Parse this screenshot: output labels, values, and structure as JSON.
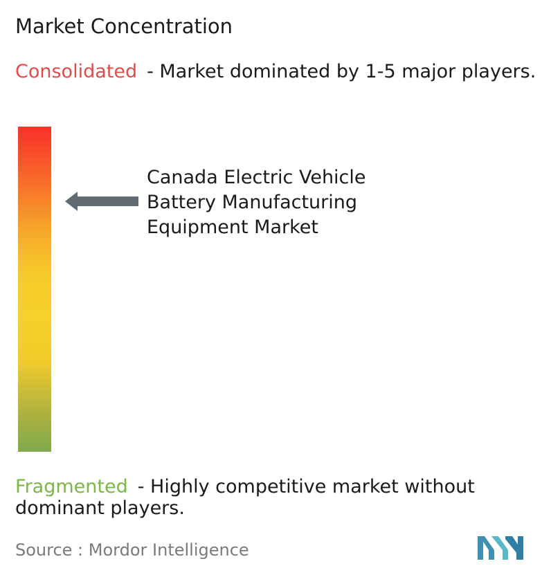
{
  "title": "Market Concentration",
  "consolidated": {
    "label": "Consolidated",
    "description": "- Market dominated by 1-5 major players.",
    "color": "#e04b4b"
  },
  "fragmented": {
    "label": "Fragmented",
    "description": "- Highly competitive market without dominant players.",
    "color": "#7ab648"
  },
  "market": {
    "name": "Canada Electric Vehicle Battery Manufacturing Equipment Market"
  },
  "scale": {
    "gradient_colors": [
      "#f9302a",
      "#f7712a",
      "#f7a72a",
      "#f6c92a",
      "#f6d12a",
      "#f0cc2a",
      "#b6b53e",
      "#80a84c"
    ]
  },
  "source": {
    "text": "Source :  Mordor Intelligence"
  },
  "logo": {
    "icon": "mordor-intelligence-logo-icon",
    "color": "#5bb8c9"
  }
}
